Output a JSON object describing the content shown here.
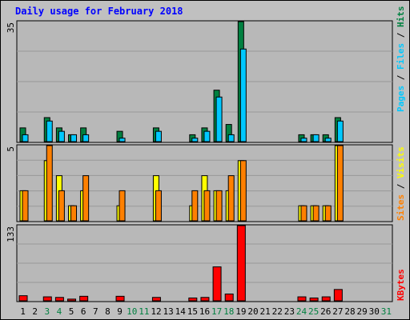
{
  "title": "Daily usage for February 2018",
  "colors": {
    "background": "#c0c0c0",
    "plot": "#b8b8b8",
    "hits": "#008040",
    "files": "#00c8ff",
    "pages": "#00c8ff",
    "visits": "#ffff00",
    "sites": "#ff8000",
    "kbytes": "#ff0000",
    "title": "#0000ff",
    "weekend_label": "#008040"
  },
  "chart_data": [
    {
      "type": "bar",
      "panel": "hits-files-pages",
      "ymax_label": "35",
      "ylim": [
        0,
        35
      ],
      "legend": [
        "Pages",
        "/",
        "Files",
        "/",
        "Hits"
      ],
      "categories": [
        "1",
        "2",
        "3",
        "4",
        "5",
        "6",
        "7",
        "8",
        "9",
        "10",
        "11",
        "12",
        "13",
        "14",
        "15",
        "16",
        "17",
        "18",
        "19",
        "20",
        "21",
        "22",
        "23",
        "24",
        "25",
        "26",
        "27",
        "28",
        "29",
        "30",
        "31"
      ],
      "series": [
        {
          "name": "Hits",
          "values": [
            4,
            0,
            7,
            4,
            2,
            4,
            0,
            0,
            3,
            0,
            0,
            4,
            0,
            0,
            2,
            4,
            15,
            5,
            35,
            0,
            0,
            0,
            0,
            2,
            2,
            2,
            7,
            0,
            0,
            0,
            0
          ]
        },
        {
          "name": "Files",
          "values": [
            2,
            0,
            6,
            3,
            2,
            2,
            0,
            0,
            1,
            0,
            0,
            3,
            0,
            0,
            1,
            3,
            13,
            2,
            27,
            0,
            0,
            0,
            0,
            1,
            2,
            1,
            6,
            0,
            0,
            0,
            0
          ]
        },
        {
          "name": "Pages",
          "values": [
            0,
            0,
            0,
            0,
            0,
            0,
            0,
            0,
            0,
            0,
            0,
            0,
            0,
            0,
            0,
            0,
            0,
            0,
            0,
            0,
            0,
            0,
            0,
            0,
            0,
            0,
            0,
            0,
            0,
            0,
            0
          ]
        }
      ]
    },
    {
      "type": "bar",
      "panel": "visits-sites",
      "ymax_label": "5",
      "ylim": [
        0,
        5
      ],
      "legend": [
        "Sites",
        "/",
        "Visits"
      ],
      "categories": [
        "1",
        "2",
        "3",
        "4",
        "5",
        "6",
        "7",
        "8",
        "9",
        "10",
        "11",
        "12",
        "13",
        "14",
        "15",
        "16",
        "17",
        "18",
        "19",
        "20",
        "21",
        "22",
        "23",
        "24",
        "25",
        "26",
        "27",
        "28",
        "29",
        "30",
        "31"
      ],
      "series": [
        {
          "name": "Visits",
          "values": [
            2,
            0,
            4,
            3,
            1,
            2,
            0,
            0,
            1,
            0,
            0,
            3,
            0,
            0,
            1,
            3,
            2,
            2,
            4,
            0,
            0,
            0,
            0,
            1,
            1,
            1,
            5,
            0,
            0,
            0,
            0
          ]
        },
        {
          "name": "Sites",
          "values": [
            2,
            0,
            5,
            2,
            1,
            3,
            0,
            0,
            2,
            0,
            0,
            2,
            0,
            0,
            2,
            2,
            2,
            3,
            4,
            0,
            0,
            0,
            0,
            1,
            1,
            1,
            5,
            0,
            0,
            0,
            0
          ]
        }
      ]
    },
    {
      "type": "bar",
      "panel": "kbytes",
      "ymax_label": "133",
      "ylim": [
        0,
        133
      ],
      "legend": [
        "KBytes"
      ],
      "categories": [
        "1",
        "2",
        "3",
        "4",
        "5",
        "6",
        "7",
        "8",
        "9",
        "10",
        "11",
        "12",
        "13",
        "14",
        "15",
        "16",
        "17",
        "18",
        "19",
        "20",
        "21",
        "22",
        "23",
        "24",
        "25",
        "26",
        "27",
        "28",
        "29",
        "30",
        "31"
      ],
      "series": [
        {
          "name": "KBytes",
          "values": [
            9,
            0,
            7,
            6,
            3,
            8,
            0,
            0,
            8,
            0,
            0,
            6,
            0,
            0,
            5,
            6,
            60,
            12,
            133,
            0,
            0,
            0,
            0,
            7,
            5,
            7,
            20,
            0,
            0,
            0,
            0
          ]
        }
      ]
    }
  ],
  "x_labels": [
    "1",
    "2",
    "3",
    "4",
    "5",
    "6",
    "7",
    "8",
    "9",
    "10",
    "11",
    "12",
    "13",
    "14",
    "15",
    "16",
    "17",
    "18",
    "19",
    "20",
    "21",
    "22",
    "23",
    "24",
    "25",
    "26",
    "27",
    "28",
    "29",
    "30",
    "31"
  ],
  "weekend_days": [
    "3",
    "4",
    "10",
    "11",
    "17",
    "18",
    "24",
    "25",
    "31"
  ]
}
